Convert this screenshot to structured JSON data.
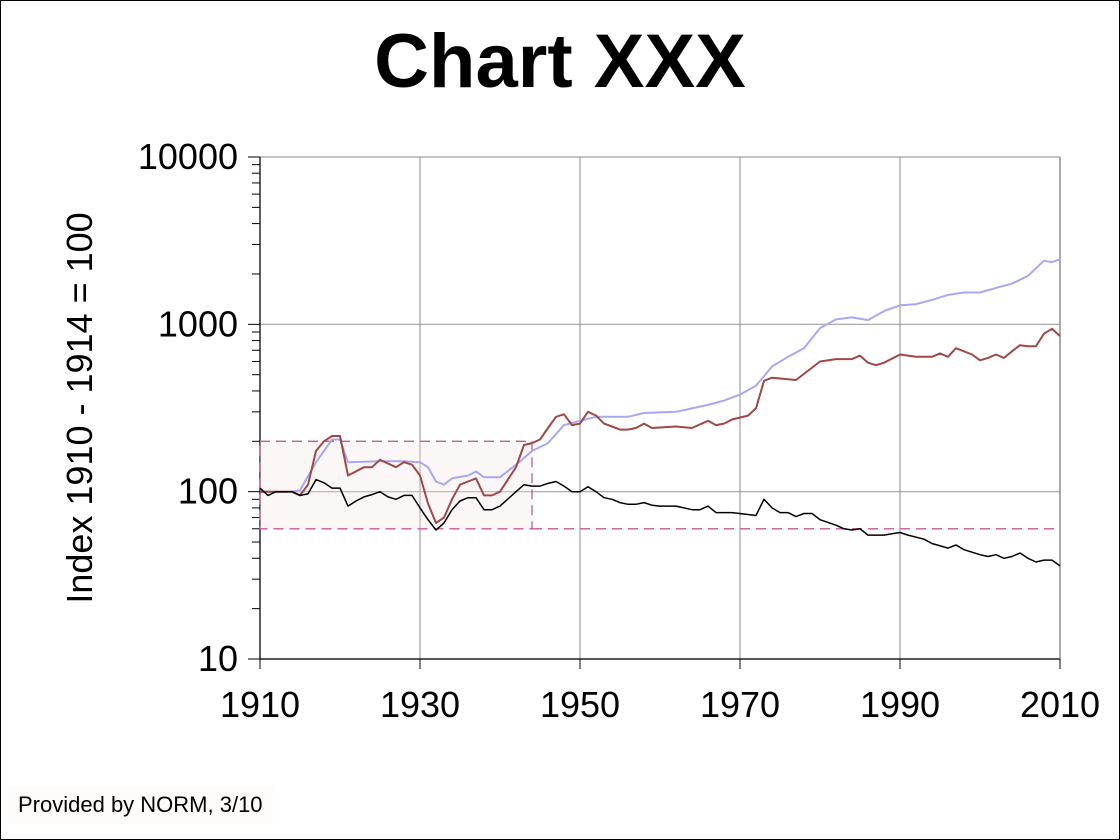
{
  "chart_data": {
    "type": "line",
    "title": "Chart XXX",
    "xlabel": "",
    "ylabel": "Index 1910 - 1914 = 100",
    "yscale": "log",
    "xlim": [
      1910,
      2010
    ],
    "ylim": [
      10,
      10000
    ],
    "grid": true,
    "x_ticks": [
      "1910",
      "1930",
      "1950",
      "1970",
      "1990",
      "2010"
    ],
    "y_ticks": [
      "10",
      "100",
      "1000",
      "10000"
    ],
    "reference_box": {
      "x": [
        1910,
        1944
      ],
      "y": [
        60,
        200
      ],
      "color": "#cc5599"
    },
    "reference_line": {
      "y": 60,
      "x": [
        1944,
        2010
      ],
      "color": "#cc5599"
    },
    "series": [
      {
        "name": "light-blue",
        "color": "#a8a8f0",
        "points": [
          [
            1910,
            100
          ],
          [
            1912,
            100
          ],
          [
            1914,
            100
          ],
          [
            1915,
            102
          ],
          [
            1917,
            150
          ],
          [
            1919,
            205
          ],
          [
            1920,
            205
          ],
          [
            1921,
            150
          ],
          [
            1925,
            152
          ],
          [
            1928,
            152
          ],
          [
            1930,
            150
          ],
          [
            1931,
            140
          ],
          [
            1932,
            115
          ],
          [
            1933,
            110
          ],
          [
            1934,
            120
          ],
          [
            1936,
            125
          ],
          [
            1937,
            132
          ],
          [
            1938,
            122
          ],
          [
            1940,
            122
          ],
          [
            1942,
            145
          ],
          [
            1944,
            175
          ],
          [
            1946,
            195
          ],
          [
            1948,
            250
          ],
          [
            1950,
            265
          ],
          [
            1952,
            280
          ],
          [
            1956,
            280
          ],
          [
            1958,
            295
          ],
          [
            1962,
            300
          ],
          [
            1966,
            330
          ],
          [
            1968,
            350
          ],
          [
            1970,
            380
          ],
          [
            1972,
            430
          ],
          [
            1974,
            560
          ],
          [
            1976,
            640
          ],
          [
            1978,
            720
          ],
          [
            1980,
            950
          ],
          [
            1982,
            1070
          ],
          [
            1984,
            1100
          ],
          [
            1986,
            1060
          ],
          [
            1988,
            1200
          ],
          [
            1990,
            1300
          ],
          [
            1992,
            1320
          ],
          [
            1994,
            1400
          ],
          [
            1996,
            1500
          ],
          [
            1998,
            1550
          ],
          [
            2000,
            1550
          ],
          [
            2002,
            1650
          ],
          [
            2004,
            1750
          ],
          [
            2006,
            1950
          ],
          [
            2008,
            2400
          ],
          [
            2009,
            2350
          ],
          [
            2010,
            2450
          ]
        ]
      },
      {
        "name": "brown",
        "color": "#a04848",
        "points": [
          [
            1910,
            100
          ],
          [
            1914,
            100
          ],
          [
            1915,
            95
          ],
          [
            1916,
            110
          ],
          [
            1917,
            175
          ],
          [
            1918,
            200
          ],
          [
            1919,
            215
          ],
          [
            1920,
            215
          ],
          [
            1921,
            125
          ],
          [
            1923,
            140
          ],
          [
            1924,
            140
          ],
          [
            1925,
            155
          ],
          [
            1927,
            140
          ],
          [
            1928,
            150
          ],
          [
            1929,
            145
          ],
          [
            1930,
            125
          ],
          [
            1931,
            85
          ],
          [
            1932,
            65
          ],
          [
            1933,
            70
          ],
          [
            1934,
            90
          ],
          [
            1935,
            110
          ],
          [
            1936,
            115
          ],
          [
            1937,
            120
          ],
          [
            1938,
            95
          ],
          [
            1939,
            95
          ],
          [
            1940,
            100
          ],
          [
            1942,
            140
          ],
          [
            1943,
            190
          ],
          [
            1944,
            195
          ],
          [
            1945,
            205
          ],
          [
            1946,
            240
          ],
          [
            1947,
            280
          ],
          [
            1948,
            290
          ],
          [
            1949,
            250
          ],
          [
            1950,
            255
          ],
          [
            1951,
            300
          ],
          [
            1952,
            285
          ],
          [
            1953,
            255
          ],
          [
            1954,
            245
          ],
          [
            1955,
            235
          ],
          [
            1956,
            235
          ],
          [
            1957,
            240
          ],
          [
            1958,
            255
          ],
          [
            1959,
            240
          ],
          [
            1962,
            245
          ],
          [
            1964,
            240
          ],
          [
            1966,
            265
          ],
          [
            1967,
            250
          ],
          [
            1968,
            255
          ],
          [
            1969,
            270
          ],
          [
            1971,
            285
          ],
          [
            1972,
            315
          ],
          [
            1973,
            460
          ],
          [
            1974,
            480
          ],
          [
            1976,
            470
          ],
          [
            1977,
            465
          ],
          [
            1980,
            600
          ],
          [
            1982,
            620
          ],
          [
            1984,
            620
          ],
          [
            1985,
            650
          ],
          [
            1986,
            590
          ],
          [
            1987,
            570
          ],
          [
            1988,
            590
          ],
          [
            1990,
            660
          ],
          [
            1992,
            640
          ],
          [
            1994,
            640
          ],
          [
            1995,
            670
          ],
          [
            1996,
            640
          ],
          [
            1997,
            720
          ],
          [
            1999,
            660
          ],
          [
            2000,
            610
          ],
          [
            2001,
            630
          ],
          [
            2002,
            660
          ],
          [
            2003,
            630
          ],
          [
            2004,
            690
          ],
          [
            2005,
            750
          ],
          [
            2006,
            740
          ],
          [
            2007,
            740
          ],
          [
            2008,
            880
          ],
          [
            2009,
            940
          ],
          [
            2010,
            850
          ]
        ]
      },
      {
        "name": "black",
        "color": "#000000",
        "points": [
          [
            1910,
            105
          ],
          [
            1911,
            95
          ],
          [
            1912,
            100
          ],
          [
            1914,
            100
          ],
          [
            1915,
            95
          ],
          [
            1916,
            97
          ],
          [
            1917,
            118
          ],
          [
            1918,
            113
          ],
          [
            1919,
            105
          ],
          [
            1920,
            105
          ],
          [
            1921,
            82
          ],
          [
            1922,
            88
          ],
          [
            1923,
            93
          ],
          [
            1924,
            96
          ],
          [
            1925,
            100
          ],
          [
            1926,
            93
          ],
          [
            1927,
            90
          ],
          [
            1928,
            95
          ],
          [
            1929,
            95
          ],
          [
            1930,
            80
          ],
          [
            1931,
            68
          ],
          [
            1932,
            59
          ],
          [
            1933,
            65
          ],
          [
            1934,
            78
          ],
          [
            1935,
            88
          ],
          [
            1936,
            92
          ],
          [
            1937,
            92
          ],
          [
            1938,
            78
          ],
          [
            1939,
            78
          ],
          [
            1940,
            82
          ],
          [
            1942,
            100
          ],
          [
            1943,
            110
          ],
          [
            1944,
            108
          ],
          [
            1945,
            108
          ],
          [
            1946,
            112
          ],
          [
            1947,
            115
          ],
          [
            1948,
            108
          ],
          [
            1949,
            100
          ],
          [
            1950,
            100
          ],
          [
            1951,
            107
          ],
          [
            1952,
            100
          ],
          [
            1953,
            92
          ],
          [
            1954,
            90
          ],
          [
            1955,
            86
          ],
          [
            1956,
            84
          ],
          [
            1957,
            84
          ],
          [
            1958,
            86
          ],
          [
            1959,
            83
          ],
          [
            1960,
            82
          ],
          [
            1962,
            82
          ],
          [
            1964,
            78
          ],
          [
            1965,
            78
          ],
          [
            1966,
            82
          ],
          [
            1967,
            75
          ],
          [
            1969,
            75
          ],
          [
            1971,
            73
          ],
          [
            1972,
            72
          ],
          [
            1973,
            90
          ],
          [
            1974,
            80
          ],
          [
            1975,
            75
          ],
          [
            1976,
            75
          ],
          [
            1977,
            71
          ],
          [
            1978,
            74
          ],
          [
            1979,
            74
          ],
          [
            1980,
            68
          ],
          [
            1982,
            63
          ],
          [
            1983,
            60
          ],
          [
            1984,
            59
          ],
          [
            1985,
            60
          ],
          [
            1986,
            55
          ],
          [
            1988,
            55
          ],
          [
            1989,
            56
          ],
          [
            1990,
            57
          ],
          [
            1991,
            55
          ],
          [
            1993,
            52
          ],
          [
            1994,
            49
          ],
          [
            1996,
            46
          ],
          [
            1997,
            48
          ],
          [
            1998,
            45
          ],
          [
            2000,
            42
          ],
          [
            2001,
            41
          ],
          [
            2002,
            42
          ],
          [
            2003,
            40
          ],
          [
            2004,
            41
          ],
          [
            2005,
            43
          ],
          [
            2006,
            40
          ],
          [
            2007,
            38
          ],
          [
            2008,
            39
          ],
          [
            2009,
            39
          ],
          [
            2010,
            36
          ]
        ]
      }
    ]
  },
  "footer": "Provided by NORM, 3/10"
}
